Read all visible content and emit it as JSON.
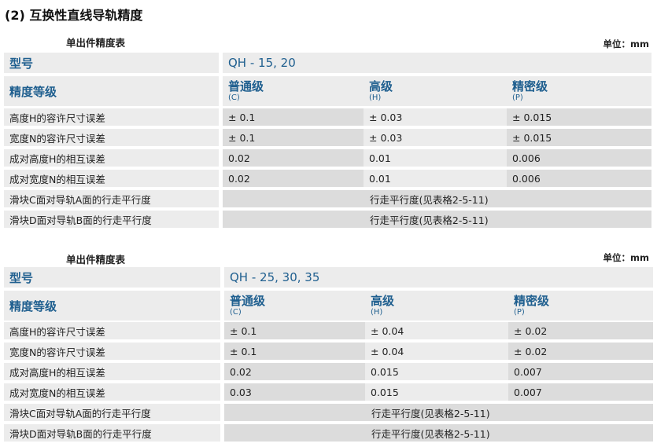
{
  "title": "(2) 互换性直线导轨精度",
  "tables": [
    {
      "caption": "单出件精度表",
      "unit": "单位：mm",
      "model_label": "型号",
      "model_value": "QH - 15, 20",
      "grade_label": "精度等级",
      "grades": [
        {
          "name": "普通级",
          "code": "(C)"
        },
        {
          "name": "高级",
          "code": "(H)"
        },
        {
          "name": "精密级",
          "code": "(P)"
        }
      ],
      "rows": [
        {
          "label": "高度H的容许尺寸误差",
          "values": [
            "± 0.1",
            "± 0.03",
            "± 0.015"
          ]
        },
        {
          "label": "宽度N的容许尺寸误差",
          "values": [
            "± 0.1",
            "± 0.03",
            "± 0.015"
          ]
        },
        {
          "label": "成对高度H的相互误差",
          "values": [
            "0.02",
            "0.01",
            "0.006"
          ]
        },
        {
          "label": "成对宽度N的相互误差",
          "values": [
            "0.02",
            "0.01",
            "0.006"
          ]
        },
        {
          "label": "滑块C面对导轨A面的行走平行度",
          "merged": "行走平行度(见表格2-5-11)"
        },
        {
          "label": "滑块D面对导轨B面的行走平行度",
          "merged": "行走平行度(见表格2-5-11)"
        }
      ]
    },
    {
      "caption": "单出件精度表",
      "unit": "单位：mm",
      "model_label": "型号",
      "model_value": "QH - 25, 30, 35",
      "grade_label": "精度等级",
      "grades": [
        {
          "name": "普通级",
          "code": "(C)"
        },
        {
          "name": "高级",
          "code": "(H)"
        },
        {
          "name": "精密级",
          "code": "(P)"
        }
      ],
      "rows": [
        {
          "label": "高度H的容许尺寸误差",
          "values": [
            "± 0.1",
            "± 0.04",
            "± 0.02"
          ]
        },
        {
          "label": "宽度N的容许尺寸误差",
          "values": [
            "± 0.1",
            "± 0.04",
            "± 0.02"
          ]
        },
        {
          "label": "成对高度H的相互误差",
          "values": [
            "0.02",
            "0.015",
            "0.007"
          ]
        },
        {
          "label": "成对宽度N的相互误差",
          "values": [
            "0.03",
            "0.015",
            "0.007"
          ]
        },
        {
          "label": "滑块C面对导轨A面的行走平行度",
          "merged": "行走平行度(见表格2-5-11)"
        },
        {
          "label": "滑块D面对导轨B面的行走平行度",
          "merged": "行走平行度(见表格2-5-11)"
        }
      ]
    }
  ]
}
